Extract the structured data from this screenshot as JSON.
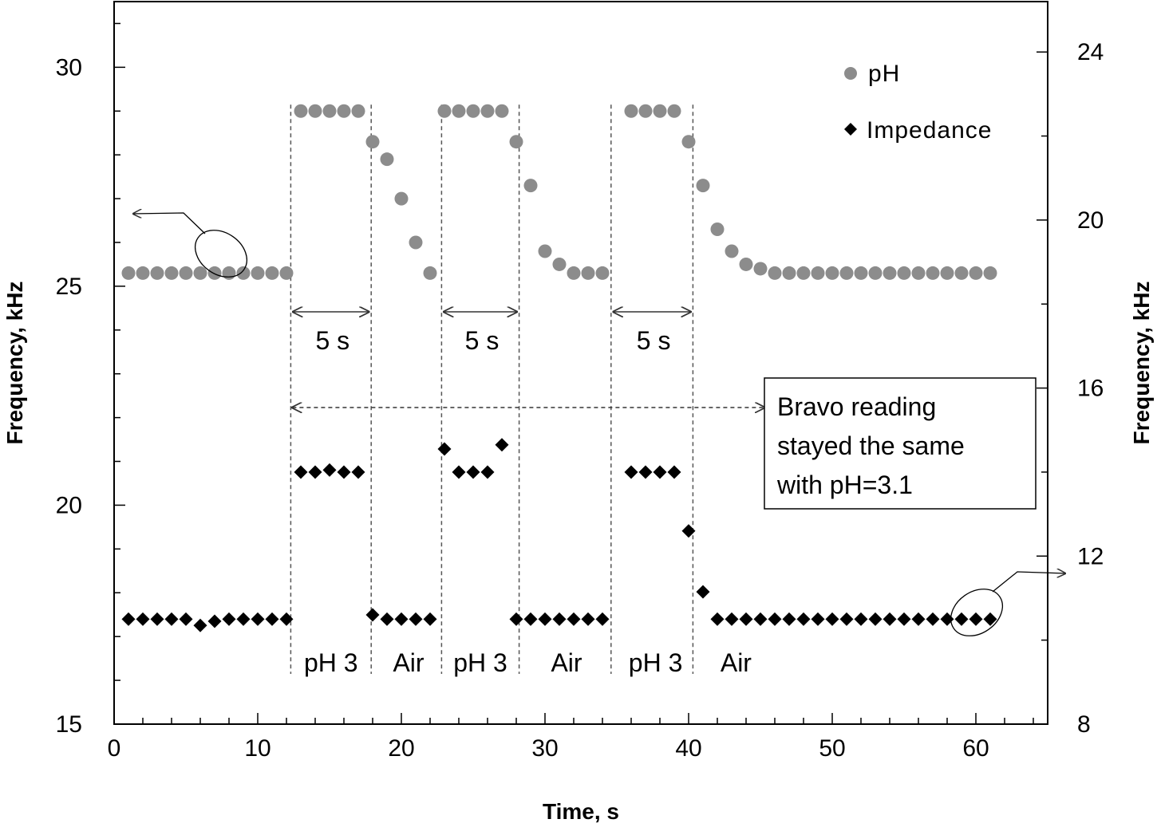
{
  "chart_data": {
    "type": "scatter",
    "title": "",
    "xlabel": "Time, s",
    "ylabel_left": "Frequency, kHz",
    "ylabel_right": "Frequency, kHz",
    "xlim": [
      0,
      65
    ],
    "ylim_left": [
      15,
      31.5
    ],
    "ylim_right": [
      8,
      25.2
    ],
    "x_ticks": [
      "0",
      "10",
      "20",
      "30",
      "40",
      "50",
      "60"
    ],
    "y_left_ticks": [
      "15",
      "20",
      "25",
      "30"
    ],
    "y_right_ticks": [
      "8",
      "12",
      "16",
      "20",
      "24"
    ],
    "colors": {
      "ph": "#8c8c8c",
      "impedance": "#000000",
      "axis": "#000000",
      "guide": "#555555"
    },
    "series": [
      {
        "name": "pH",
        "axis": "left",
        "marker": "circle",
        "x": [
          1,
          2,
          3,
          4,
          5,
          6,
          7,
          8,
          9,
          10,
          11,
          12,
          13,
          14,
          15,
          16,
          17,
          18,
          19,
          20,
          21,
          22,
          23,
          24,
          25,
          26,
          27,
          28,
          29,
          30,
          31,
          32,
          33,
          34,
          36,
          37,
          38,
          39,
          40,
          41,
          42,
          43,
          44,
          45,
          46,
          47,
          48,
          49,
          50,
          51,
          52,
          53,
          54,
          55,
          56,
          57,
          58,
          59,
          60,
          61
        ],
        "y": [
          25.3,
          25.3,
          25.3,
          25.3,
          25.3,
          25.3,
          25.3,
          25.3,
          25.3,
          25.3,
          25.3,
          25.3,
          29.0,
          29.0,
          29.0,
          29.0,
          29.0,
          28.3,
          27.9,
          27.0,
          26.0,
          25.3,
          29.0,
          29.0,
          29.0,
          29.0,
          29.0,
          28.3,
          27.3,
          25.8,
          25.5,
          25.3,
          25.3,
          25.3,
          29.0,
          29.0,
          29.0,
          29.0,
          28.3,
          27.3,
          26.3,
          25.8,
          25.5,
          25.4,
          25.3,
          25.3,
          25.3,
          25.3,
          25.3,
          25.3,
          25.3,
          25.3,
          25.3,
          25.3,
          25.3,
          25.3,
          25.3,
          25.3,
          25.3,
          25.3
        ]
      },
      {
        "name": "Impedance",
        "axis": "right",
        "marker": "diamond",
        "x": [
          1,
          2,
          3,
          4,
          5,
          6,
          7,
          8,
          9,
          10,
          11,
          12,
          13,
          14,
          15,
          16,
          17,
          18,
          19,
          20,
          21,
          22,
          23,
          24,
          25,
          26,
          27,
          28,
          29,
          30,
          31,
          32,
          33,
          34,
          36,
          37,
          38,
          39,
          40,
          41,
          42,
          43,
          44,
          45,
          46,
          47,
          48,
          49,
          50,
          51,
          52,
          53,
          54,
          55,
          56,
          57,
          58,
          59,
          60,
          61
        ],
        "y": [
          10.5,
          10.5,
          10.5,
          10.5,
          10.5,
          10.35,
          10.45,
          10.5,
          10.5,
          10.5,
          10.5,
          10.5,
          14.0,
          14.0,
          14.05,
          14.0,
          14.0,
          10.6,
          10.5,
          10.5,
          10.5,
          10.5,
          14.55,
          14.0,
          14.0,
          14.0,
          14.65,
          10.5,
          10.5,
          10.5,
          10.5,
          10.5,
          10.5,
          10.5,
          14.0,
          14.0,
          14.0,
          14.0,
          12.6,
          11.15,
          10.5,
          10.5,
          10.5,
          10.5,
          10.5,
          10.5,
          10.5,
          10.5,
          10.5,
          10.5,
          10.5,
          10.5,
          10.5,
          10.5,
          10.5,
          10.5,
          10.5,
          10.5,
          10.5,
          10.5
        ]
      }
    ],
    "phase_boundaries": [
      12.3,
      17.9,
      22.8,
      28.2,
      34.6,
      40.3
    ],
    "intervals": [
      {
        "label": "5 s",
        "from": 12.3,
        "to": 17.9
      },
      {
        "label": "5 s",
        "from": 22.8,
        "to": 28.2
      },
      {
        "label": "5 s",
        "from": 34.6,
        "to": 40.3
      }
    ],
    "phase_labels": [
      {
        "label": "pH 3",
        "x": 15.1
      },
      {
        "label": "Air",
        "x": 20.5
      },
      {
        "label": "pH 3",
        "x": 25.5
      },
      {
        "label": "Air",
        "x": 31.5
      },
      {
        "label": "pH 3",
        "x": 37.7
      },
      {
        "label": "Air",
        "x": 43.3
      }
    ],
    "annotation_lines": [
      "Bravo reading",
      "stayed the same",
      "with pH=3.1"
    ],
    "legend": {
      "position": "top-right",
      "entries": [
        "pH",
        "Impedance"
      ]
    }
  }
}
